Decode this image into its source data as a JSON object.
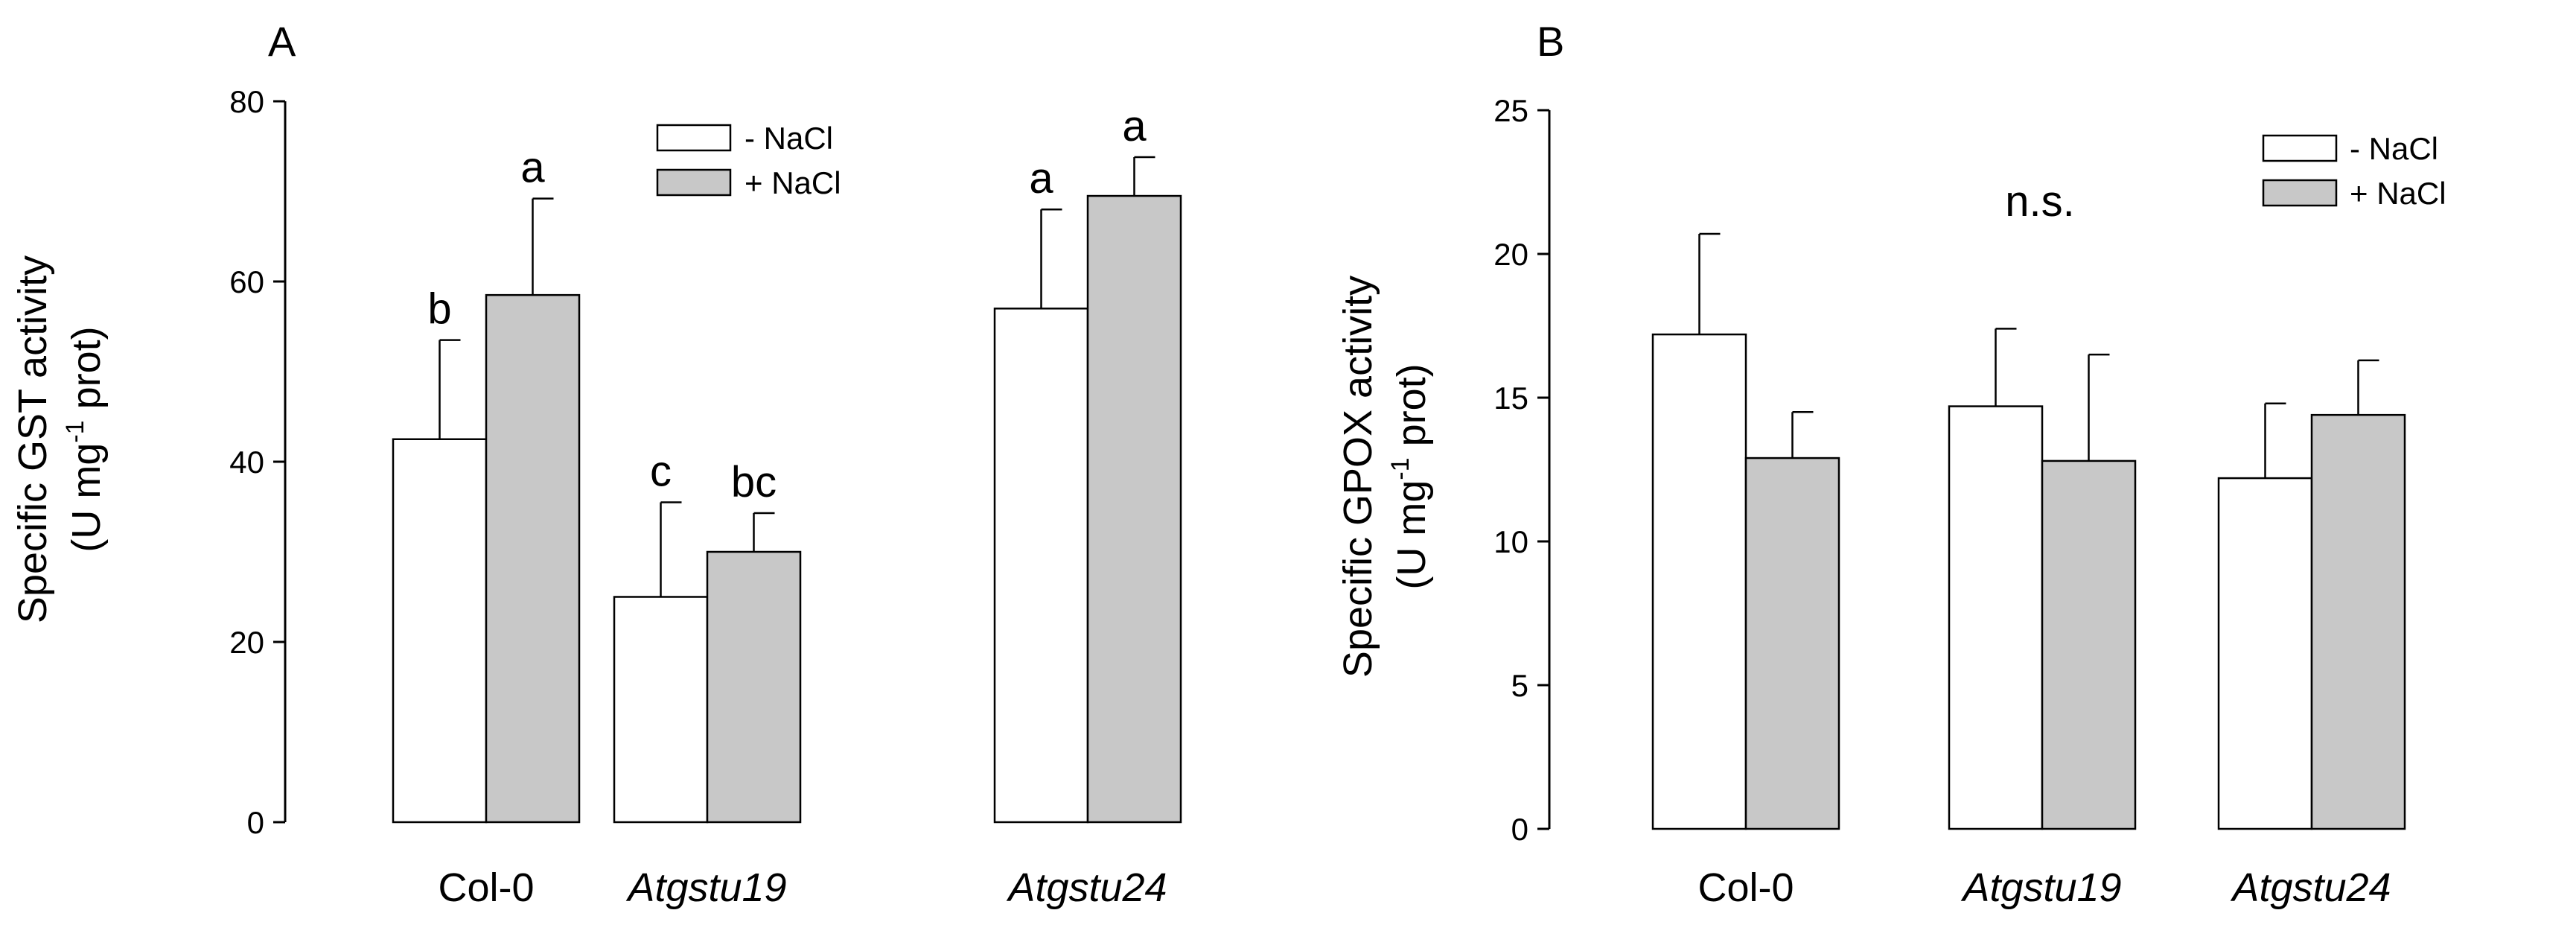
{
  "colors": {
    "minus_nacl": "#ffffff",
    "plus_nacl": "#c8c8c8",
    "stroke": "#000000"
  },
  "chart_data": [
    {
      "type": "bar",
      "panel_label": "A",
      "categories": [
        "Col-0",
        "Atgstu19",
        "Atgstu24"
      ],
      "categories_italic": [
        false,
        true,
        true
      ],
      "ylabel_line1": "Specific GST activity",
      "ylabel_line2_pre": "(U mg",
      "ylabel_line2_sup": "-1",
      "ylabel_line2_post": " prot)",
      "ylim": [
        0,
        80
      ],
      "yticks": [
        0,
        20,
        40,
        60,
        80
      ],
      "legend_position": "top-right",
      "series": [
        {
          "name": "- NaCl",
          "values": [
            42.5,
            25,
            57
          ],
          "errors": [
            11,
            10.5,
            11
          ],
          "letters": [
            "b",
            "c",
            "a"
          ]
        },
        {
          "name": "+ NaCl",
          "values": [
            58.5,
            30,
            69.5
          ],
          "errors": [
            10.7,
            4.3,
            4.3
          ],
          "letters": [
            "a",
            "bc",
            "a"
          ]
        }
      ],
      "annotation": ""
    },
    {
      "type": "bar",
      "panel_label": "B",
      "categories": [
        "Col-0",
        "Atgstu19",
        "Atgstu24"
      ],
      "categories_italic": [
        false,
        true,
        true
      ],
      "ylabel_line1": "Specific GPOX activity",
      "ylabel_line2_pre": "(U mg",
      "ylabel_line2_sup": "-1",
      "ylabel_line2_post": " prot)",
      "ylim": [
        0,
        25
      ],
      "yticks": [
        0,
        5,
        10,
        15,
        20,
        25
      ],
      "legend_position": "top-right",
      "series": [
        {
          "name": "- NaCl",
          "values": [
            17.2,
            14.7,
            12.2
          ],
          "errors": [
            3.5,
            2.7,
            2.6
          ],
          "letters": [
            "",
            "",
            ""
          ]
        },
        {
          "name": "+ NaCl",
          "values": [
            12.9,
            12.8,
            14.4
          ],
          "errors": [
            1.6,
            3.7,
            1.9
          ],
          "letters": [
            "",
            "",
            ""
          ]
        }
      ],
      "annotation": "n.s."
    }
  ]
}
